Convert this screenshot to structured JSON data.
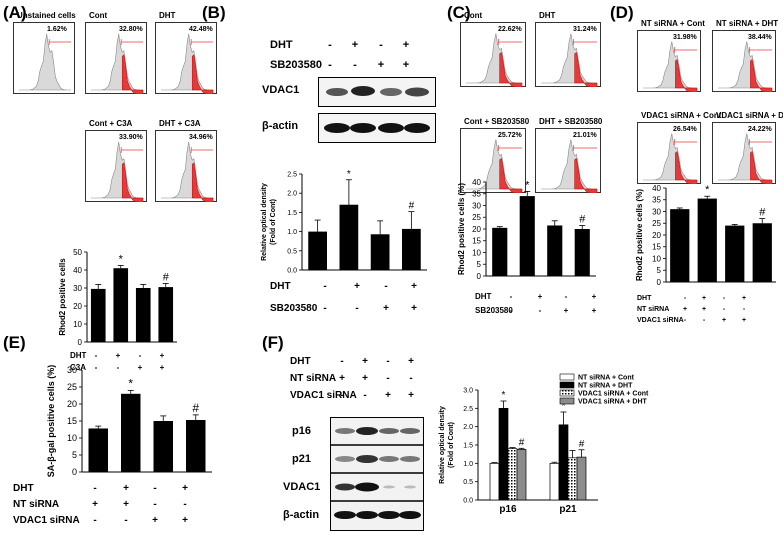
{
  "panels": {
    "A": {
      "label": "(A)",
      "histograms": [
        {
          "title": "Unstained cells",
          "percent": "1.62%"
        },
        {
          "title": "Cont",
          "percent": "32.80%"
        },
        {
          "title": "DHT",
          "percent": "42.48%"
        },
        {
          "title": "Cont + C3A",
          "percent": "33.90%"
        },
        {
          "title": "DHT + C3A",
          "percent": "34.96%"
        }
      ],
      "treatments": [
        {
          "name": "DHT",
          "signs": [
            "-",
            "+",
            "-",
            "+"
          ]
        },
        {
          "name": "C3A",
          "signs": [
            "-",
            "-",
            "+",
            "+"
          ]
        }
      ]
    },
    "B": {
      "label": "(B)",
      "treatments": [
        {
          "name": "DHT",
          "signs": [
            "-",
            "+",
            "-",
            "+"
          ]
        },
        {
          "name": "SB203580",
          "signs": [
            "-",
            "-",
            "+",
            "+"
          ]
        }
      ],
      "blots": [
        "VDAC1",
        "β-actin"
      ]
    },
    "C": {
      "label": "(C)",
      "histograms": [
        {
          "title": "Cont",
          "percent": "22.62%"
        },
        {
          "title": "DHT",
          "percent": "31.24%"
        },
        {
          "title": "Cont + SB203580",
          "percent": "25.72%"
        },
        {
          "title": "DHT + SB203580",
          "percent": "21.01%"
        }
      ],
      "treatments": [
        {
          "name": "DHT",
          "signs": [
            "-",
            "+",
            "-",
            "+"
          ]
        },
        {
          "name": "SB203580",
          "signs": [
            "-",
            "-",
            "+",
            "+"
          ]
        }
      ]
    },
    "D": {
      "label": "(D)",
      "histograms": [
        {
          "title": "NT siRNA + Cont",
          "percent": "31.98%"
        },
        {
          "title": "NT siRNA + DHT",
          "percent": "38.44%"
        },
        {
          "title": "VDAC1 siRNA + Cont",
          "percent": "26.54%"
        },
        {
          "title": "VDAC1 siRNA + DHT",
          "percent": "24.22%"
        }
      ],
      "treatments": [
        {
          "name": "DHT",
          "signs": [
            "-",
            "+",
            "-",
            "+"
          ]
        },
        {
          "name": "NT siRNA",
          "signs": [
            "+",
            "+",
            "-",
            "-"
          ]
        },
        {
          "name": "VDAC1 siRNA",
          "signs": [
            "-",
            "-",
            "+",
            "+"
          ]
        }
      ]
    },
    "E": {
      "label": "(E)",
      "treatments": [
        {
          "name": "DHT",
          "signs": [
            "-",
            "+",
            "-",
            "+"
          ]
        },
        {
          "name": "NT siRNA",
          "signs": [
            "+",
            "+",
            "-",
            "-"
          ]
        },
        {
          "name": "VDAC1 siRNA",
          "signs": [
            "-",
            "-",
            "+",
            "+"
          ]
        }
      ]
    },
    "F": {
      "label": "(F)",
      "treatments": [
        {
          "name": "DHT",
          "signs": [
            "-",
            "+",
            "-",
            "+"
          ]
        },
        {
          "name": "NT siRNA",
          "signs": [
            "+",
            "+",
            "-",
            "-"
          ]
        },
        {
          "name": "VDAC1 siRNA",
          "signs": [
            "-",
            "-",
            "+",
            "+"
          ]
        }
      ],
      "blots": [
        "p16",
        "p21",
        "VDAC1",
        "β-actin"
      ]
    }
  },
  "chart_data": [
    {
      "id": "A",
      "type": "bar",
      "categories": [
        "1",
        "2",
        "3",
        "4"
      ],
      "values": [
        29.5,
        41,
        30,
        30.5
      ],
      "errors": [
        2.5,
        1.5,
        2,
        2
      ],
      "marks": [
        "",
        "*",
        "",
        "#"
      ],
      "ylabel": "Rhod2 positive cells",
      "ylim": [
        0,
        50
      ],
      "yticks": [
        0,
        10,
        20,
        30,
        40,
        50
      ],
      "color": "#000000"
    },
    {
      "id": "B",
      "type": "bar",
      "categories": [
        "1",
        "2",
        "3",
        "4"
      ],
      "values": [
        1.0,
        1.7,
        0.93,
        1.07
      ],
      "errors": [
        0.3,
        0.65,
        0.35,
        0.45
      ],
      "marks": [
        "",
        "*",
        "",
        "#"
      ],
      "ylabel": "Relative optical density (Fold of Cont)",
      "ylim": [
        0,
        2.5
      ],
      "yticks": [
        0.0,
        0.5,
        1.0,
        1.5,
        2.0,
        2.5
      ],
      "color": "#000000"
    },
    {
      "id": "C",
      "type": "bar",
      "categories": [
        "1",
        "2",
        "3",
        "4"
      ],
      "values": [
        20.5,
        34,
        21.5,
        20
      ],
      "errors": [
        0.5,
        2,
        2,
        1.5
      ],
      "marks": [
        "",
        "*",
        "",
        "#"
      ],
      "ylabel": "Rhod2 positive cells (%)",
      "ylim": [
        0,
        40
      ],
      "yticks": [
        0,
        5,
        10,
        15,
        20,
        25,
        30,
        35,
        40
      ],
      "color": "#000000"
    },
    {
      "id": "D",
      "type": "bar",
      "categories": [
        "1",
        "2",
        "3",
        "4"
      ],
      "values": [
        31,
        35.5,
        24,
        25
      ],
      "errors": [
        0.5,
        1,
        0.5,
        2
      ],
      "marks": [
        "",
        "*",
        "",
        "#"
      ],
      "ylabel": "Rhod2 positive cells (%)",
      "ylim": [
        0,
        40
      ],
      "yticks": [
        0,
        5,
        10,
        15,
        20,
        25,
        30,
        35,
        40
      ],
      "color": "#000000"
    },
    {
      "id": "E",
      "type": "bar",
      "categories": [
        "1",
        "2",
        "3",
        "4"
      ],
      "values": [
        12.8,
        23,
        15,
        15.3
      ],
      "errors": [
        0.7,
        1,
        1.5,
        1.5
      ],
      "marks": [
        "",
        "*",
        "",
        "#"
      ],
      "ylabel": "SA-β-gal positive cells (%)",
      "ylim": [
        0,
        30
      ],
      "yticks": [
        0,
        5,
        10,
        15,
        20,
        25,
        30
      ],
      "color": "#000000"
    },
    {
      "id": "F",
      "type": "bar",
      "categories": [
        "p16",
        "p21"
      ],
      "series": [
        {
          "name": "NT siRNA + Cont",
          "values": [
            1.0,
            1.0
          ],
          "errors": [
            0.02,
            0.03
          ]
        },
        {
          "name": "NT siRNA + DHT",
          "values": [
            2.5,
            2.05
          ],
          "errors": [
            0.2,
            0.35
          ]
        },
        {
          "name": "VDAC1 siRNA + Cont",
          "values": [
            1.4,
            1.15
          ],
          "errors": [
            0.03,
            0.2
          ]
        },
        {
          "name": "VDAC1 siRNA + DHT",
          "values": [
            1.38,
            1.17
          ],
          "errors": [
            0.03,
            0.2
          ]
        }
      ],
      "marks": [
        [
          "",
          "*",
          "",
          "#"
        ],
        [
          "",
          "*",
          "",
          "#"
        ]
      ],
      "ylabel": "Relative optical density (Fold of Cont)",
      "ylim": [
        0,
        3.0
      ],
      "yticks": [
        0.0,
        0.5,
        1.0,
        1.5,
        2.0,
        2.5,
        3.0
      ]
    }
  ]
}
